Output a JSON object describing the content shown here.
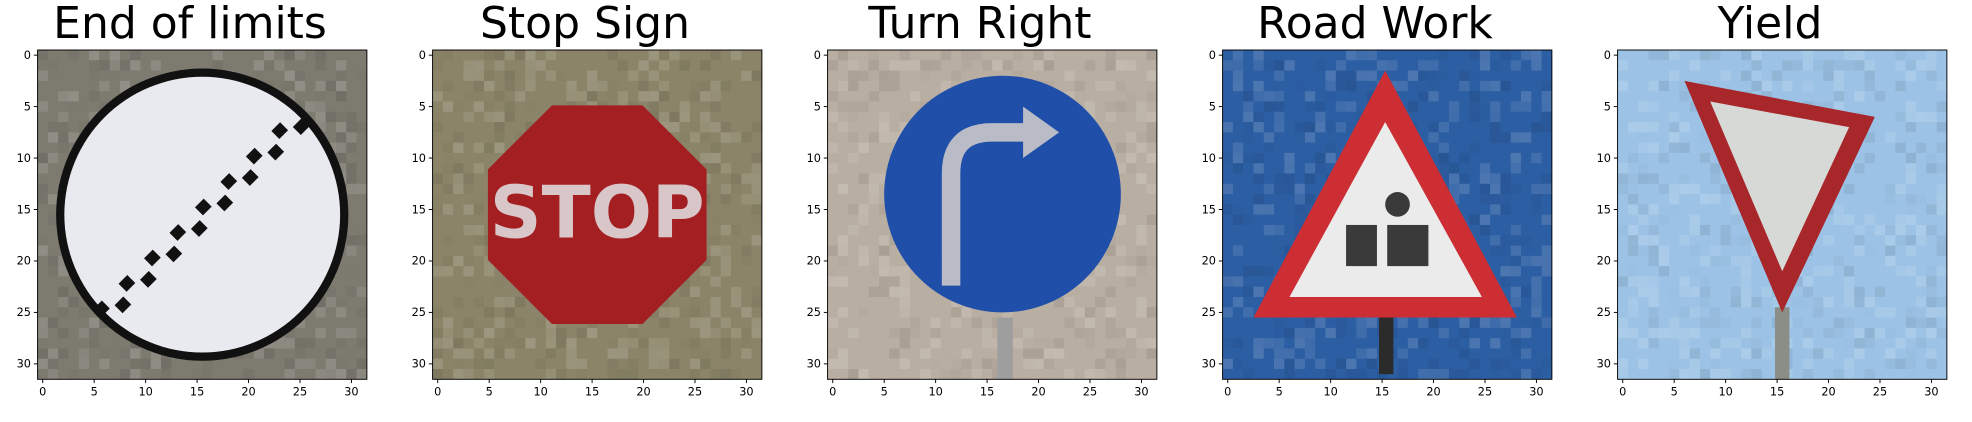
{
  "figure": {
    "ticks": {
      "x": [
        "0",
        "5",
        "10",
        "15",
        "20",
        "25",
        "30"
      ],
      "y": [
        "0",
        "5",
        "10",
        "15",
        "20",
        "25",
        "30"
      ]
    },
    "panels": [
      {
        "title": "End of limits",
        "image": "end-of-limits-sign",
        "background": "#7d7a70"
      },
      {
        "title": "Stop Sign",
        "image": "stop-sign",
        "background": "#8b8468"
      },
      {
        "title": "Turn Right",
        "image": "turn-right-sign",
        "background": "#b9aea2"
      },
      {
        "title": "Road Work",
        "image": "road-work-sign",
        "background": "#2c5ea3"
      },
      {
        "title": "Yield",
        "image": "yield-sign",
        "background": "#9cc3e6"
      }
    ]
  }
}
